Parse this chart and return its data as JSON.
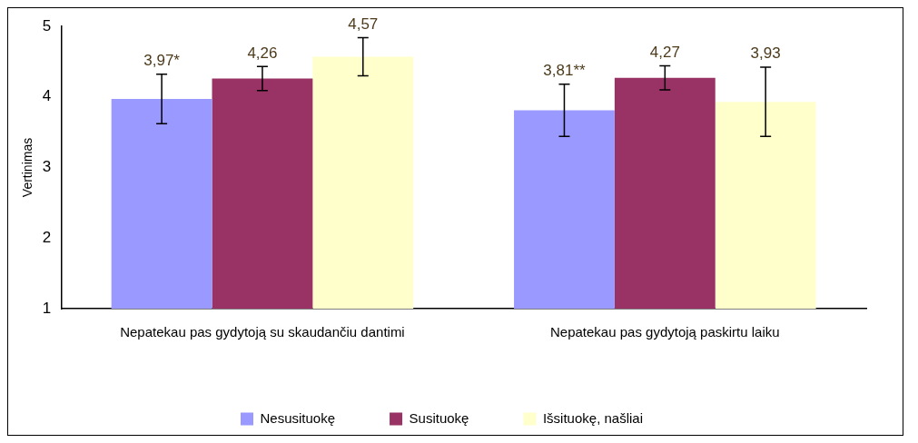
{
  "chart_data": {
    "type": "bar",
    "ylabel": "Vertinimas",
    "categories": [
      "Nepatekau pas gydytoją su skaudančiu dantimi",
      "Nepatekau pas gydytoją paskirtu laiku"
    ],
    "series": [
      {
        "name": "Nesusituokę",
        "color": "#9999ff",
        "values": [
          3.97,
          3.81
        ],
        "errors": [
          0.35,
          0.37
        ],
        "value_labels": [
          "3,97*",
          "3,81**"
        ]
      },
      {
        "name": "Susituokę",
        "color": "#993366",
        "values": [
          4.26,
          4.27
        ],
        "errors": [
          0.17,
          0.17
        ],
        "value_labels": [
          "4,26",
          "4,27"
        ]
      },
      {
        "name": "Išsituokę, našliai",
        "color": "#ffffcc",
        "values": [
          4.57,
          3.93
        ],
        "errors": [
          0.27,
          0.49
        ],
        "value_labels": [
          "4,57",
          "3,93"
        ]
      }
    ],
    "ylim": [
      1,
      5
    ],
    "yticks": [
      1,
      2,
      3,
      4,
      5
    ],
    "grid": false,
    "legend": "bottom"
  }
}
